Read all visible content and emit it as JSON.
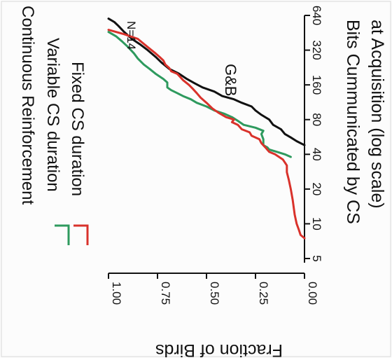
{
  "chart_data": {
    "type": "line",
    "rotated": "90-clockwise",
    "title": "Continuous Reinforcement",
    "xlabel": "Bits Cummunicated by CS at Acquisition (log scale)",
    "xlabel_lines": [
      "Bits Cummunicated by CS",
      "at Acquisition (log scale)"
    ],
    "ylabel": "Fraction of Birds",
    "x_scale": "log2",
    "xlim": [
      5,
      640
    ],
    "ylim": [
      0,
      1
    ],
    "x_ticks": [
      5,
      10,
      20,
      40,
      80,
      160,
      320,
      640
    ],
    "x_tick_labels": [
      "5",
      "10",
      "20",
      "40",
      "80",
      "160",
      "320",
      "640"
    ],
    "y_ticks": [
      1.0,
      0.75,
      0.5,
      0.25,
      0.0
    ],
    "y_tick_labels": [
      "1.00",
      "0.75",
      "0.50",
      "0.25",
      "0.00"
    ],
    "legend": [
      {
        "label": "Variable CS duration",
        "color": "#2e9a5e"
      },
      {
        "label": "Fixed CS duration",
        "color": "#d9322b"
      }
    ],
    "annotations": [
      "N=14",
      "G&B"
    ],
    "series": [
      {
        "name": "G&B",
        "color": "#111111",
        "x": [
          48,
          52,
          56,
          60,
          66,
          72,
          80,
          88,
          96,
          104,
          112,
          120,
          128,
          140,
          152,
          165,
          180,
          200,
          220,
          250,
          280,
          320,
          360,
          400,
          460,
          520,
          560,
          600
        ],
        "y": [
          0.0,
          0.04,
          0.07,
          0.1,
          0.12,
          0.16,
          0.18,
          0.22,
          0.25,
          0.27,
          0.32,
          0.36,
          0.42,
          0.46,
          0.52,
          0.56,
          0.6,
          0.64,
          0.69,
          0.73,
          0.76,
          0.8,
          0.84,
          0.88,
          0.92,
          0.95,
          0.97,
          1.0
        ]
      },
      {
        "name": "Variable CS duration",
        "color": "#2e9a5e",
        "x": [
          38,
          40,
          42,
          44,
          46,
          48,
          54,
          60,
          64,
          68,
          72,
          78,
          84,
          90,
          96,
          104,
          112,
          120,
          128,
          136,
          144,
          152,
          168,
          180,
          200,
          220,
          240,
          270,
          300,
          340,
          380,
          420,
          460
        ],
        "y": [
          0.07,
          0.1,
          0.14,
          0.18,
          0.19,
          0.21,
          0.21,
          0.22,
          0.21,
          0.25,
          0.31,
          0.34,
          0.37,
          0.41,
          0.46,
          0.5,
          0.55,
          0.58,
          0.62,
          0.65,
          0.68,
          0.7,
          0.7,
          0.72,
          0.76,
          0.79,
          0.82,
          0.85,
          0.87,
          0.9,
          0.93,
          0.96,
          1.0
        ]
      },
      {
        "name": "Fixed CS duration",
        "color": "#d9322b",
        "x": [
          7.5,
          8,
          9,
          10,
          12,
          16,
          20,
          24,
          28,
          32,
          34,
          36,
          38,
          40,
          42,
          46,
          50,
          54,
          58,
          62,
          66,
          72,
          76,
          80,
          84,
          92,
          100,
          112,
          124,
          136,
          148,
          160,
          176,
          192,
          200,
          210,
          224,
          240,
          260,
          280,
          300,
          340,
          400,
          440,
          480
        ],
        "y": [
          0.0,
          0.02,
          0.03,
          0.04,
          0.05,
          0.06,
          0.07,
          0.08,
          0.09,
          0.09,
          0.1,
          0.11,
          0.13,
          0.15,
          0.18,
          0.2,
          0.22,
          0.23,
          0.27,
          0.28,
          0.32,
          0.34,
          0.37,
          0.36,
          0.4,
          0.44,
          0.47,
          0.5,
          0.53,
          0.55,
          0.57,
          0.59,
          0.62,
          0.64,
          0.65,
          0.68,
          0.69,
          0.71,
          0.72,
          0.74,
          0.76,
          0.8,
          0.85,
          0.92,
          1.0
        ]
      }
    ]
  }
}
